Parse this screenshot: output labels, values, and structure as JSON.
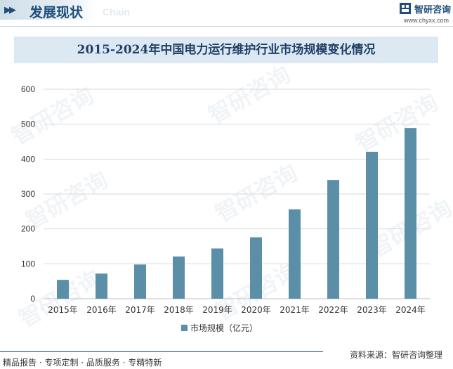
{
  "header": {
    "section_title": "发展现状",
    "section_subtitle": "Chain",
    "brand_name": "智研咨询",
    "brand_url": "www.chyxx.com"
  },
  "chart_data": {
    "type": "bar",
    "title": "2015-2024年中国电力运行维护行业市场规模变化情况",
    "categories": [
      "2015年",
      "2016年",
      "2017年",
      "2018年",
      "2019年",
      "2020年",
      "2021年",
      "2022年",
      "2023年",
      "2024年"
    ],
    "series": [
      {
        "name": "市场规模（亿元）",
        "values": [
          54,
          72,
          98,
          121,
          144,
          176,
          256,
          340,
          421,
          489
        ],
        "color": "#5b8fa8"
      }
    ],
    "yticks": [
      "0",
      "100",
      "200",
      "300",
      "400",
      "500",
      "600"
    ],
    "ylim": [
      0,
      600
    ],
    "xlabel": "",
    "ylabel": "",
    "grid": true,
    "legend": "bottom-center"
  },
  "watermark": {
    "text": "智研咨询"
  },
  "footer": {
    "left": "精品报告 · 专项定制 · 品质服务 · 专精特新",
    "right": "资料来源：智研咨询整理"
  }
}
